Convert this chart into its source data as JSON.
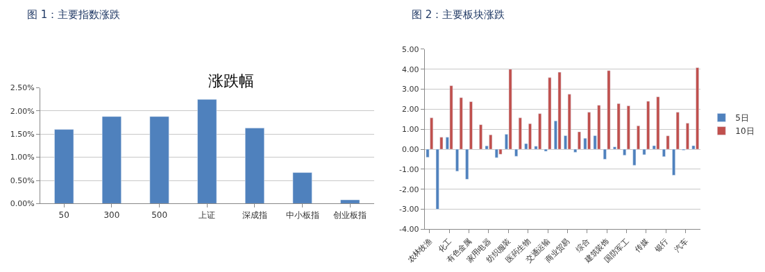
{
  "chart_data": [
    {
      "type": "bar",
      "title": "图 1：主要指数涨跌",
      "subtitle": "涨跌幅",
      "categories": [
        "50",
        "300",
        "500",
        "上证",
        "深成指",
        "中小板指",
        "创业板指"
      ],
      "values": [
        1.6,
        1.88,
        1.88,
        2.25,
        1.63,
        0.67,
        0.08
      ],
      "color": "#4f81bd",
      "ylim": [
        0,
        2.5
      ],
      "yticks": [
        {
          "value": 0,
          "label": "0.00%"
        },
        {
          "value": 0.5,
          "label": "0.50%"
        },
        {
          "value": 1,
          "label": "1.00%"
        },
        {
          "value": 1.5,
          "label": "1.50%"
        },
        {
          "value": 2,
          "label": "2.00%"
        },
        {
          "value": 2.5,
          "label": "2.50%"
        }
      ],
      "grid": "y",
      "legend": false
    },
    {
      "type": "bar",
      "title": "图 2：主要板块涨跌",
      "categories": [
        "农林牧渔",
        null,
        "化工",
        null,
        "有色金属",
        null,
        "家用电器",
        null,
        "纺织服装",
        null,
        "医药生物",
        null,
        "交通运输",
        null,
        "商业贸易",
        null,
        "综合",
        null,
        "建筑装饰",
        null,
        "国防军工",
        null,
        "传媒",
        null,
        "银行",
        null,
        "汽车",
        null
      ],
      "series": [
        {
          "name": "5日",
          "color": "#4f81bd",
          "values": [
            -0.4,
            -3.0,
            0.6,
            -1.1,
            -1.5,
            null,
            0.17,
            -0.42,
            0.75,
            -0.35,
            0.28,
            0.15,
            -0.1,
            1.42,
            0.68,
            -0.15,
            0.55,
            0.68,
            -0.5,
            0.12,
            -0.3,
            -0.8,
            -0.27,
            0.18,
            -0.37,
            -1.3,
            -0.05,
            0.18
          ]
        },
        {
          "name": "10日",
          "color": "#c0504d",
          "values": [
            1.57,
            0.6,
            3.18,
            2.58,
            2.38,
            1.23,
            0.72,
            -0.25,
            4.0,
            1.57,
            1.28,
            1.78,
            3.58,
            3.85,
            2.75,
            0.87,
            1.85,
            2.2,
            3.93,
            2.28,
            2.17,
            1.17,
            2.4,
            2.62,
            0.67,
            1.85,
            1.3,
            4.08
          ]
        }
      ],
      "ylim": [
        -4,
        5
      ],
      "yticks": [
        {
          "value": -4,
          "label": "-4.00"
        },
        {
          "value": -3,
          "label": "-3.00"
        },
        {
          "value": -2,
          "label": "-2.00"
        },
        {
          "value": -1,
          "label": "-1.00"
        },
        {
          "value": 0,
          "label": "0.00"
        },
        {
          "value": 1,
          "label": "1.00"
        },
        {
          "value": 2,
          "label": "2.00"
        },
        {
          "value": 3,
          "label": "3.00"
        },
        {
          "value": 4,
          "label": "4.00"
        },
        {
          "value": 5,
          "label": "5.00"
        }
      ],
      "grid": "y",
      "legend": "right"
    }
  ]
}
